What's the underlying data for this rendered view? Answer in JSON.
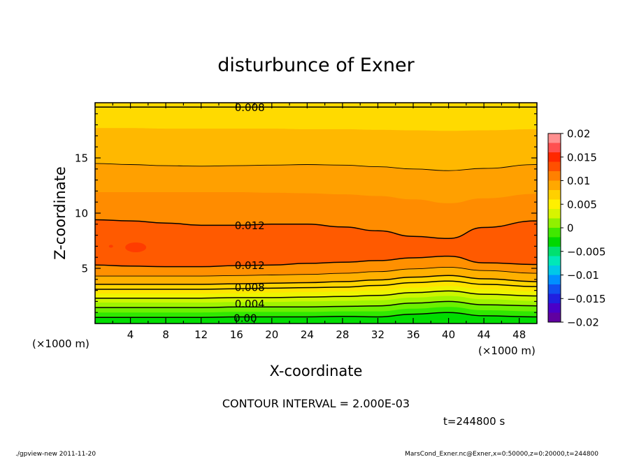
{
  "chart_data": {
    "type": "heatmap",
    "title": "disturbunce of Exner",
    "xlabel": "X-coordinate",
    "ylabel": "Z-coordinate",
    "x_unit_left": "(×1000 m)",
    "x_unit_right": "(×1000 m)",
    "xlim": [
      0,
      50
    ],
    "ylim": [
      0,
      20
    ],
    "x_ticks": [
      "4",
      "8",
      "12",
      "16",
      "20",
      "24",
      "28",
      "32",
      "36",
      "40",
      "44",
      "48"
    ],
    "y_ticks": [
      "5",
      "10",
      "15"
    ],
    "contour_interval_text": "CONTOUR INTERVAL = 2.000E-03",
    "time_text": "t=244800 s",
    "contour_labels": [
      {
        "text": "0.008",
        "x": 17.5,
        "y": 19.6
      },
      {
        "text": "0.012",
        "x": 17.5,
        "y": 8.9
      },
      {
        "text": "0.012",
        "x": 17.5,
        "y": 5.3
      },
      {
        "text": "0.008",
        "x": 17.5,
        "y": 3.3
      },
      {
        "text": "0.004",
        "x": 17.5,
        "y": 1.8
      },
      {
        "text": "0.00",
        "x": 17.0,
        "y": 0.5
      }
    ],
    "field_bands": [
      {
        "low": 0.0,
        "high": 0.001,
        "color": "#00dd00",
        "upper_z": [
          0.55,
          0.55,
          0.55,
          0.55,
          0.6,
          0.6,
          0.6,
          0.65,
          0.6,
          0.85,
          1.0,
          0.7,
          0.6
        ]
      },
      {
        "low": 0.001,
        "high": 0.002,
        "color": "#30e800",
        "upper_z": [
          1.0,
          1.0,
          1.0,
          1.0,
          1.05,
          1.05,
          1.05,
          1.1,
          1.1,
          1.35,
          1.5,
          1.2,
          1.1
        ]
      },
      {
        "low": 0.002,
        "high": 0.003,
        "color": "#6cf000",
        "upper_z": [
          1.45,
          1.45,
          1.45,
          1.45,
          1.5,
          1.5,
          1.5,
          1.55,
          1.6,
          1.85,
          2.0,
          1.7,
          1.6
        ]
      },
      {
        "low": 0.003,
        "high": 0.004,
        "color": "#a0f400",
        "upper_z": [
          1.9,
          1.9,
          1.9,
          1.9,
          1.95,
          1.95,
          2.0,
          2.05,
          2.1,
          2.35,
          2.5,
          2.2,
          2.05
        ]
      },
      {
        "low": 0.004,
        "high": 0.005,
        "color": "#ccf600",
        "upper_z": [
          2.3,
          2.3,
          2.3,
          2.3,
          2.35,
          2.35,
          2.4,
          2.45,
          2.55,
          2.8,
          2.95,
          2.65,
          2.5
        ]
      },
      {
        "low": 0.005,
        "high": 0.006,
        "color": "#eef400",
        "upper_z": [
          2.7,
          2.7,
          2.7,
          2.7,
          2.75,
          2.8,
          2.85,
          2.9,
          3.0,
          3.25,
          3.4,
          3.1,
          2.9
        ]
      },
      {
        "low": 0.006,
        "high": 0.007,
        "color": "#ffe400",
        "upper_z": [
          3.1,
          3.1,
          3.1,
          3.1,
          3.15,
          3.2,
          3.25,
          3.3,
          3.45,
          3.7,
          3.85,
          3.55,
          3.35
        ]
      },
      {
        "low": 0.007,
        "high": 0.008,
        "color": "#ffd400",
        "upper_z": [
          3.55,
          3.55,
          3.55,
          3.55,
          3.6,
          3.65,
          3.7,
          3.8,
          3.95,
          4.2,
          4.35,
          4.05,
          3.8
        ]
      },
      {
        "low": 0.008,
        "high": 0.01,
        "color": "#ffb000",
        "upper_z": [
          4.3,
          4.3,
          4.3,
          4.3,
          4.35,
          4.4,
          4.45,
          4.55,
          4.7,
          4.95,
          5.1,
          4.8,
          4.55
        ]
      },
      {
        "low": 0.01,
        "high": 0.011,
        "color": "#ff9000",
        "upper_z": [
          5.3,
          5.2,
          5.15,
          5.15,
          5.25,
          5.3,
          5.45,
          5.55,
          5.7,
          5.95,
          6.1,
          5.5,
          5.35
        ]
      },
      {
        "low": 0.011,
        "high": 0.013,
        "color": "#ff5a00",
        "upper_z": [
          9.4,
          9.3,
          9.1,
          8.9,
          8.9,
          9.0,
          9.0,
          8.75,
          8.4,
          7.9,
          7.7,
          8.7,
          9.3
        ]
      },
      {
        "low": 0.01,
        "high": 0.011,
        "color": "#ff8c00",
        "upper_z": [
          11.9,
          11.9,
          11.9,
          11.9,
          11.9,
          11.85,
          11.8,
          11.7,
          11.55,
          11.25,
          10.9,
          11.35,
          11.75
        ]
      },
      {
        "low": 0.009,
        "high": 0.01,
        "color": "#ffa000",
        "upper_z": [
          14.5,
          14.4,
          14.3,
          14.25,
          14.3,
          14.35,
          14.4,
          14.35,
          14.2,
          14.0,
          13.85,
          14.05,
          14.4
        ]
      },
      {
        "low": 0.008,
        "high": 0.009,
        "color": "#ffb800",
        "upper_z": [
          17.7,
          17.7,
          17.65,
          17.65,
          17.65,
          17.65,
          17.6,
          17.6,
          17.55,
          17.5,
          17.45,
          17.5,
          17.6
        ]
      },
      {
        "low": 0.007,
        "high": 0.008,
        "color": "#ffda00",
        "upper_z": [
          20,
          20,
          20,
          20,
          20,
          20,
          20,
          20,
          20,
          20,
          20,
          20,
          20
        ]
      }
    ],
    "band_x": [
      0,
      4,
      8,
      12,
      16,
      20,
      24,
      28,
      32,
      36,
      40,
      44,
      50
    ],
    "contour_lines": [
      {
        "value": "0.000",
        "z": [
          0.55,
          0.55,
          0.55,
          0.55,
          0.6,
          0.6,
          0.6,
          0.65,
          0.6,
          0.85,
          1.0,
          0.7,
          0.6
        ],
        "width": 1.5
      },
      {
        "value": "0.002",
        "z": [
          1.45,
          1.45,
          1.45,
          1.45,
          1.5,
          1.5,
          1.5,
          1.55,
          1.6,
          1.85,
          2.0,
          1.7,
          1.6
        ],
        "width": 1.5
      },
      {
        "value": "0.004",
        "z": [
          2.3,
          2.3,
          2.3,
          2.3,
          2.35,
          2.35,
          2.4,
          2.45,
          2.55,
          2.8,
          2.95,
          2.65,
          2.5
        ],
        "width": 1.5
      },
      {
        "value": "0.006",
        "z": [
          3.1,
          3.1,
          3.1,
          3.1,
          3.15,
          3.2,
          3.25,
          3.3,
          3.45,
          3.7,
          3.85,
          3.55,
          3.35
        ],
        "width": 1.5
      },
      {
        "value": "0.008",
        "z": [
          3.55,
          3.55,
          3.55,
          3.55,
          3.6,
          3.65,
          3.7,
          3.8,
          3.95,
          4.2,
          4.35,
          4.05,
          3.8
        ],
        "width": 1.5
      },
      {
        "value": "0.010",
        "z": [
          4.3,
          4.3,
          4.3,
          4.3,
          4.35,
          4.4,
          4.45,
          4.55,
          4.7,
          4.95,
          5.1,
          4.8,
          4.55
        ],
        "width": 0.9
      },
      {
        "value": "0.012",
        "z": [
          5.3,
          5.2,
          5.15,
          5.15,
          5.25,
          5.3,
          5.45,
          5.55,
          5.7,
          5.95,
          6.1,
          5.5,
          5.35
        ],
        "width": 1.5
      },
      {
        "value": "0.012",
        "z": [
          9.4,
          9.3,
          9.1,
          8.9,
          8.9,
          9.0,
          9.0,
          8.75,
          8.4,
          7.9,
          7.7,
          8.7,
          9.3
        ],
        "width": 1.5
      },
      {
        "value": "0.010",
        "z": [
          14.5,
          14.4,
          14.3,
          14.25,
          14.3,
          14.35,
          14.4,
          14.35,
          14.2,
          14.0,
          13.85,
          14.05,
          14.4
        ],
        "width": 0.9
      },
      {
        "value": "0.008",
        "z": [
          19.6,
          19.6,
          19.6,
          19.6,
          19.6,
          19.6,
          19.6,
          19.6,
          19.6,
          19.6,
          19.6,
          19.6,
          19.6
        ],
        "width": 1.5
      }
    ],
    "colorbar": {
      "tick_labels": [
        "0.02",
        "0.015",
        "0.01",
        "0.005",
        "0",
        "−0.005",
        "−0.01",
        "−0.015",
        "−0.02"
      ],
      "range": [
        -0.02,
        0.02
      ],
      "colors": [
        "#6000a0",
        "#4a00c8",
        "#2020e0",
        "#1050f0",
        "#0090ff",
        "#00c8e8",
        "#00e8b8",
        "#00e070",
        "#00d800",
        "#40e800",
        "#90f000",
        "#d8f400",
        "#fff000",
        "#ffd000",
        "#ffa800",
        "#ff8000",
        "#ff5000",
        "#ff2800",
        "#ff5050",
        "#ff9090"
      ]
    }
  },
  "footer": {
    "left": "./gpview-new   2011-11-20",
    "right": "MarsCond_Exner.nc@Exner,x=0:50000,z=0:20000,t=244800"
  }
}
